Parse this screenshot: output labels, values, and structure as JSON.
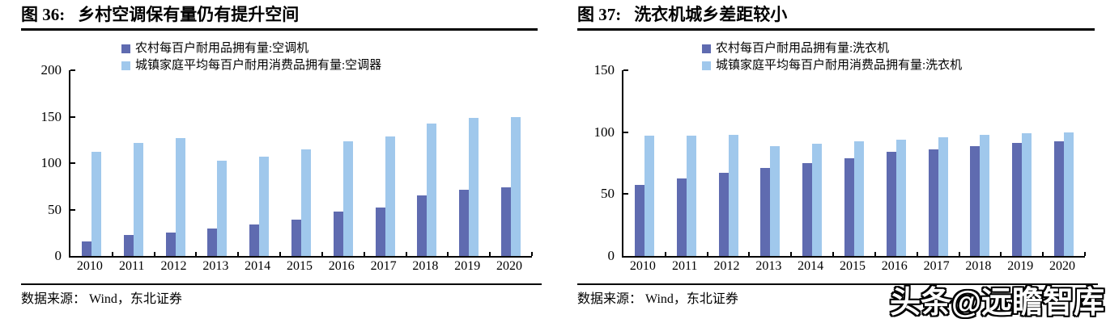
{
  "watermark": "头条@远瞻智库",
  "chart_data": [
    {
      "type": "bar",
      "figure_label": "图 36:",
      "title": "乡村空调保有量仍有提升空间",
      "source": "数据来源： Wind，东北证券",
      "categories": [
        "2010",
        "2011",
        "2012",
        "2013",
        "2014",
        "2015",
        "2016",
        "2017",
        "2018",
        "2019",
        "2020"
      ],
      "series": [
        {
          "name": "农村每百户耐用品拥有量:空调机",
          "color": "#5F6BB0",
          "values": [
            16.0,
            22.6,
            25.4,
            29.8,
            34.2,
            38.8,
            47.6,
            52.6,
            65.2,
            71.3,
            73.8
          ]
        },
        {
          "name": "城镇家庭平均每百户耐用消费品拥有量:空调器",
          "color": "#A0C8EC",
          "values": [
            112.1,
            122.0,
            126.8,
            102.2,
            107.4,
            114.6,
            123.7,
            128.6,
            142.2,
            148.3,
            149.6
          ]
        }
      ],
      "ylim": [
        0,
        200
      ],
      "yticks": [
        0,
        50,
        100,
        150,
        200
      ],
      "legend_position": "top",
      "grid": false
    },
    {
      "type": "bar",
      "figure_label": "图 37:",
      "title": "洗衣机城乡差距较小",
      "source": "数据来源： Wind，东北证券",
      "categories": [
        "2010",
        "2011",
        "2012",
        "2013",
        "2014",
        "2015",
        "2016",
        "2017",
        "2018",
        "2019",
        "2020"
      ],
      "series": [
        {
          "name": "农村每百户耐用品拥有量:洗衣机",
          "color": "#5F6BB0",
          "values": [
            57.3,
            62.6,
            67.2,
            71.2,
            74.8,
            78.8,
            83.9,
            86.3,
            88.5,
            91.6,
            92.4
          ]
        },
        {
          "name": "城镇家庭平均每百户耐用消费品拥有量:洗衣机",
          "color": "#A0C8EC",
          "values": [
            96.9,
            97.1,
            98.0,
            88.7,
            90.7,
            92.3,
            94.2,
            95.7,
            97.7,
            99.2,
            100.1
          ]
        }
      ],
      "ylim": [
        0,
        150
      ],
      "yticks": [
        0,
        50,
        100,
        150
      ],
      "legend_position": "top",
      "grid": false
    }
  ]
}
